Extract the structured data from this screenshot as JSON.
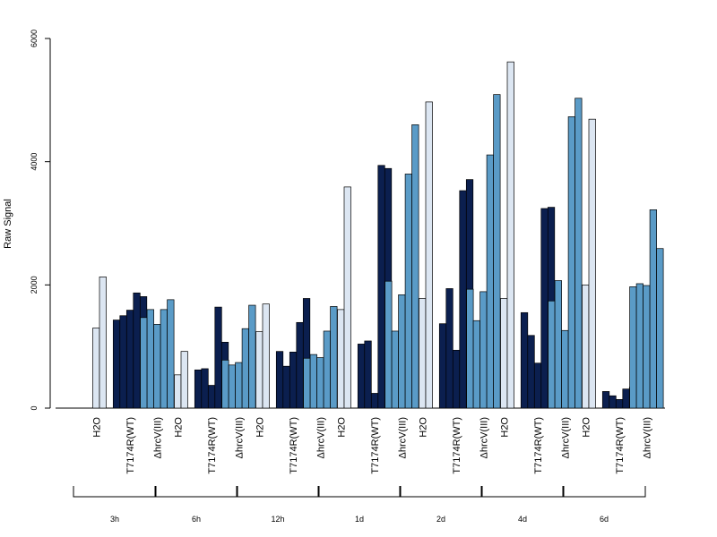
{
  "chart_data": {
    "type": "bar",
    "ylabel": "Raw Signal",
    "ylim": [
      0,
      6000
    ],
    "yticks": [
      0,
      2000,
      4000,
      6000
    ],
    "condition_labels": [
      "H2O",
      "T7174R(WT)",
      "ΔhrcV(III)"
    ],
    "condition_colors": [
      "#dce6f2",
      "#0b1f4f",
      "#5a9bc7"
    ],
    "groups": [
      {
        "name": "3h",
        "conditions": [
          {
            "label": "H2O",
            "values": [
              0,
              1300,
              2130
            ]
          },
          {
            "label": "T7174R(WT)",
            "values": [
              1430,
              1500,
              1590,
              1870,
              1810
            ]
          },
          {
            "label": "ΔhrcV(III)",
            "values": [
              1470,
              1600,
              1360,
              1600,
              1760
            ]
          }
        ]
      },
      {
        "name": "6h",
        "conditions": [
          {
            "label": "H2O",
            "values": [
              0,
              540,
              920
            ]
          },
          {
            "label": "T7174R(WT)",
            "values": [
              620,
              640,
              370,
              1640,
              1070
            ]
          },
          {
            "label": "ΔhrcV(III)",
            "values": [
              780,
              700,
              740,
              1290,
              1670
            ]
          }
        ]
      },
      {
        "name": "12h",
        "conditions": [
          {
            "label": "H2O",
            "values": [
              0,
              1240,
              1690
            ]
          },
          {
            "label": "T7174R(WT)",
            "values": [
              920,
              680,
              910,
              1390,
              1780
            ]
          },
          {
            "label": "ΔhrcV(III)",
            "values": [
              810,
              870,
              820,
              1250,
              1650
            ]
          }
        ]
      },
      {
        "name": "1d",
        "conditions": [
          {
            "label": "H2O",
            "values": [
              0,
              1600,
              3590
            ]
          },
          {
            "label": "T7174R(WT)",
            "values": [
              1040,
              1090,
              240,
              3940,
              3890
            ]
          },
          {
            "label": "ΔhrcV(III)",
            "values": [
              2060,
              1250,
              1840,
              3800,
              4600
            ]
          }
        ]
      },
      {
        "name": "2d",
        "conditions": [
          {
            "label": "H2O",
            "values": [
              0,
              1780,
              4970
            ]
          },
          {
            "label": "T7174R(WT)",
            "values": [
              1370,
              1940,
              940,
              3530,
              3710
            ]
          },
          {
            "label": "ΔhrcV(III)",
            "values": [
              1930,
              1420,
              1890,
              4110,
              5090
            ]
          }
        ]
      },
      {
        "name": "4d",
        "conditions": [
          {
            "label": "H2O",
            "values": [
              0,
              1780,
              5620
            ]
          },
          {
            "label": "T7174R(WT)",
            "values": [
              1550,
              1180,
              730,
              3240,
              3260
            ]
          },
          {
            "label": "ΔhrcV(III)",
            "values": [
              1740,
              2070,
              1260,
              4730,
              5030
            ]
          }
        ]
      },
      {
        "name": "6d",
        "conditions": [
          {
            "label": "H2O",
            "values": [
              0,
              2000,
              4690
            ]
          },
          {
            "label": "T7174R(WT)",
            "values": [
              270,
              200,
              140,
              310,
              340
            ]
          },
          {
            "label": "ΔhrcV(III)",
            "values": [
              1970,
              2020,
              1990,
              3220,
              2590
            ]
          }
        ]
      }
    ]
  }
}
